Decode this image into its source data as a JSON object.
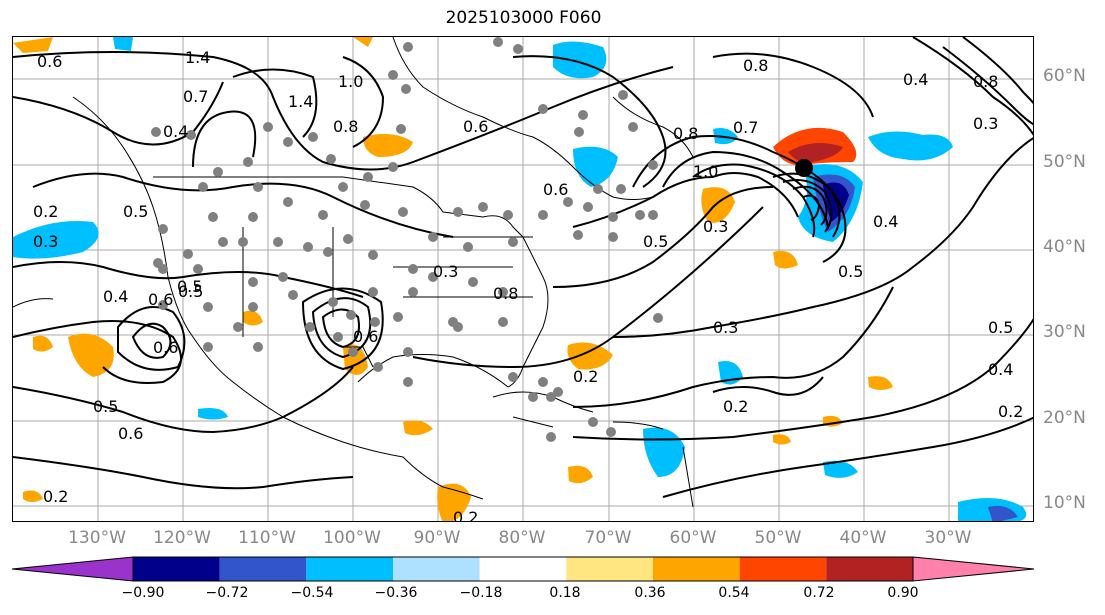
{
  "title": "2025103000 F060",
  "lat_labels": [
    "60°N",
    "50°N",
    "40°N",
    "30°N",
    "20°N",
    "10°N"
  ],
  "lon_labels": [
    "130°W",
    "120°W",
    "110°W",
    "100°W",
    "90°W",
    "80°W",
    "70°W",
    "60°W",
    "50°W",
    "40°W",
    "30°W"
  ],
  "contour_labels": [
    "1.4",
    "0.6",
    "1.4",
    "1.0",
    "0.8",
    "0.6",
    "0.4",
    "0.2",
    "0.3",
    "0.5",
    "0.4",
    "0.6",
    "0.5",
    "0.6",
    "0.5",
    "0.2",
    "0.6",
    "1.0",
    "0.8",
    "0.6",
    "0.7",
    "0.8",
    "0.5",
    "0.3",
    "0.5",
    "0.4",
    "0.3",
    "0.5",
    "0.4",
    "0.2",
    "0.3",
    "0.2",
    "0.2",
    "0.6",
    "0.5",
    "0.2",
    "0.3",
    "0.8",
    "0.4",
    "0.7",
    "0.8"
  ],
  "colorbar": {
    "ticks": [
      "−0.90",
      "−0.72",
      "−0.54",
      "−0.36",
      "−0.18",
      "0.18",
      "0.36",
      "0.54",
      "0.72",
      "0.90"
    ],
    "colors": [
      "#9933cc",
      "#00008b",
      "#3355cc",
      "#00bfff",
      "#aee0ff",
      "#ffffff",
      "#ffe680",
      "#ffa500",
      "#ff4500",
      "#b22222",
      "#ff80aa"
    ]
  }
}
